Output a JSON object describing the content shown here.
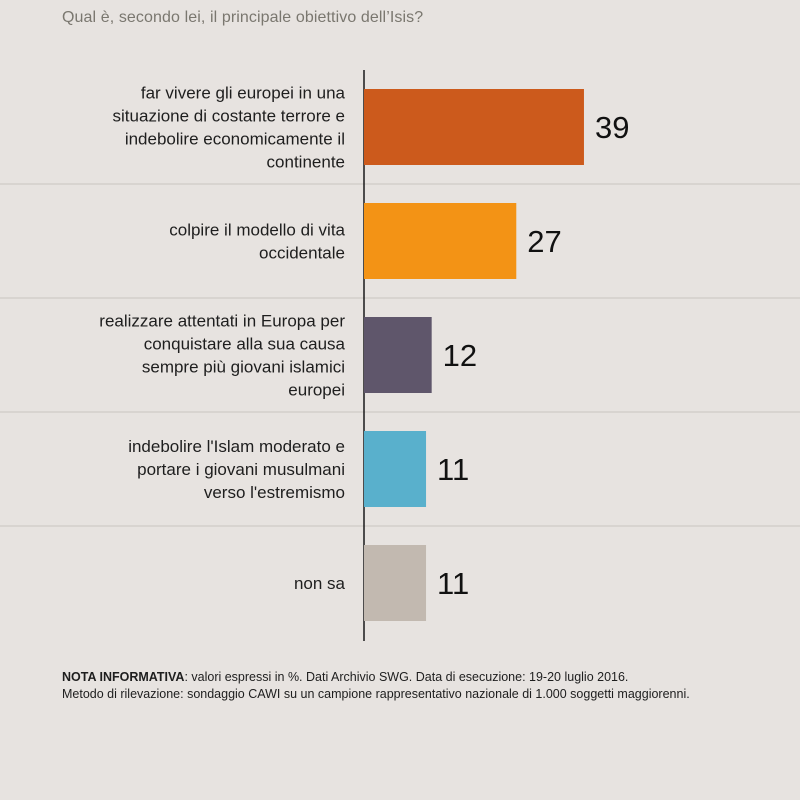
{
  "title": "Qual è, secondo lei, il principale obiettivo dell’Isis?",
  "chart_data": {
    "type": "bar",
    "orientation": "horizontal",
    "categories": [
      [
        "far vivere gli europei in una",
        "situazione di costante terrore e",
        "indebolire economicamente il",
        "continente"
      ],
      [
        "colpire il modello di vita",
        "occidentale"
      ],
      [
        "realizzare attentati in Europa per",
        "conquistare alla sua causa",
        "sempre più giovani islamici",
        "europei"
      ],
      [
        "indebolire l'Islam moderato e",
        "portare i giovani musulmani",
        "verso l'estremismo"
      ],
      [
        "non sa"
      ]
    ],
    "values": [
      39,
      27,
      12,
      11,
      11
    ],
    "colors": [
      "#cc5a1c",
      "#f39315",
      "#5f566b",
      "#59b0cc",
      "#c2b9b0"
    ],
    "xlim": [
      0,
      45
    ],
    "unit": "%",
    "grid": false
  },
  "note": {
    "label": "NOTA INFORMATIVA",
    "line1": ": valori espressi in %. Dati Archivio SWG. Data di esecuzione: 19-20 luglio 2016.",
    "line2": "Metodo di rilevazione: sondaggio CAWI su un campione rappresentativo nazionale di 1.000 soggetti maggiorenni."
  }
}
